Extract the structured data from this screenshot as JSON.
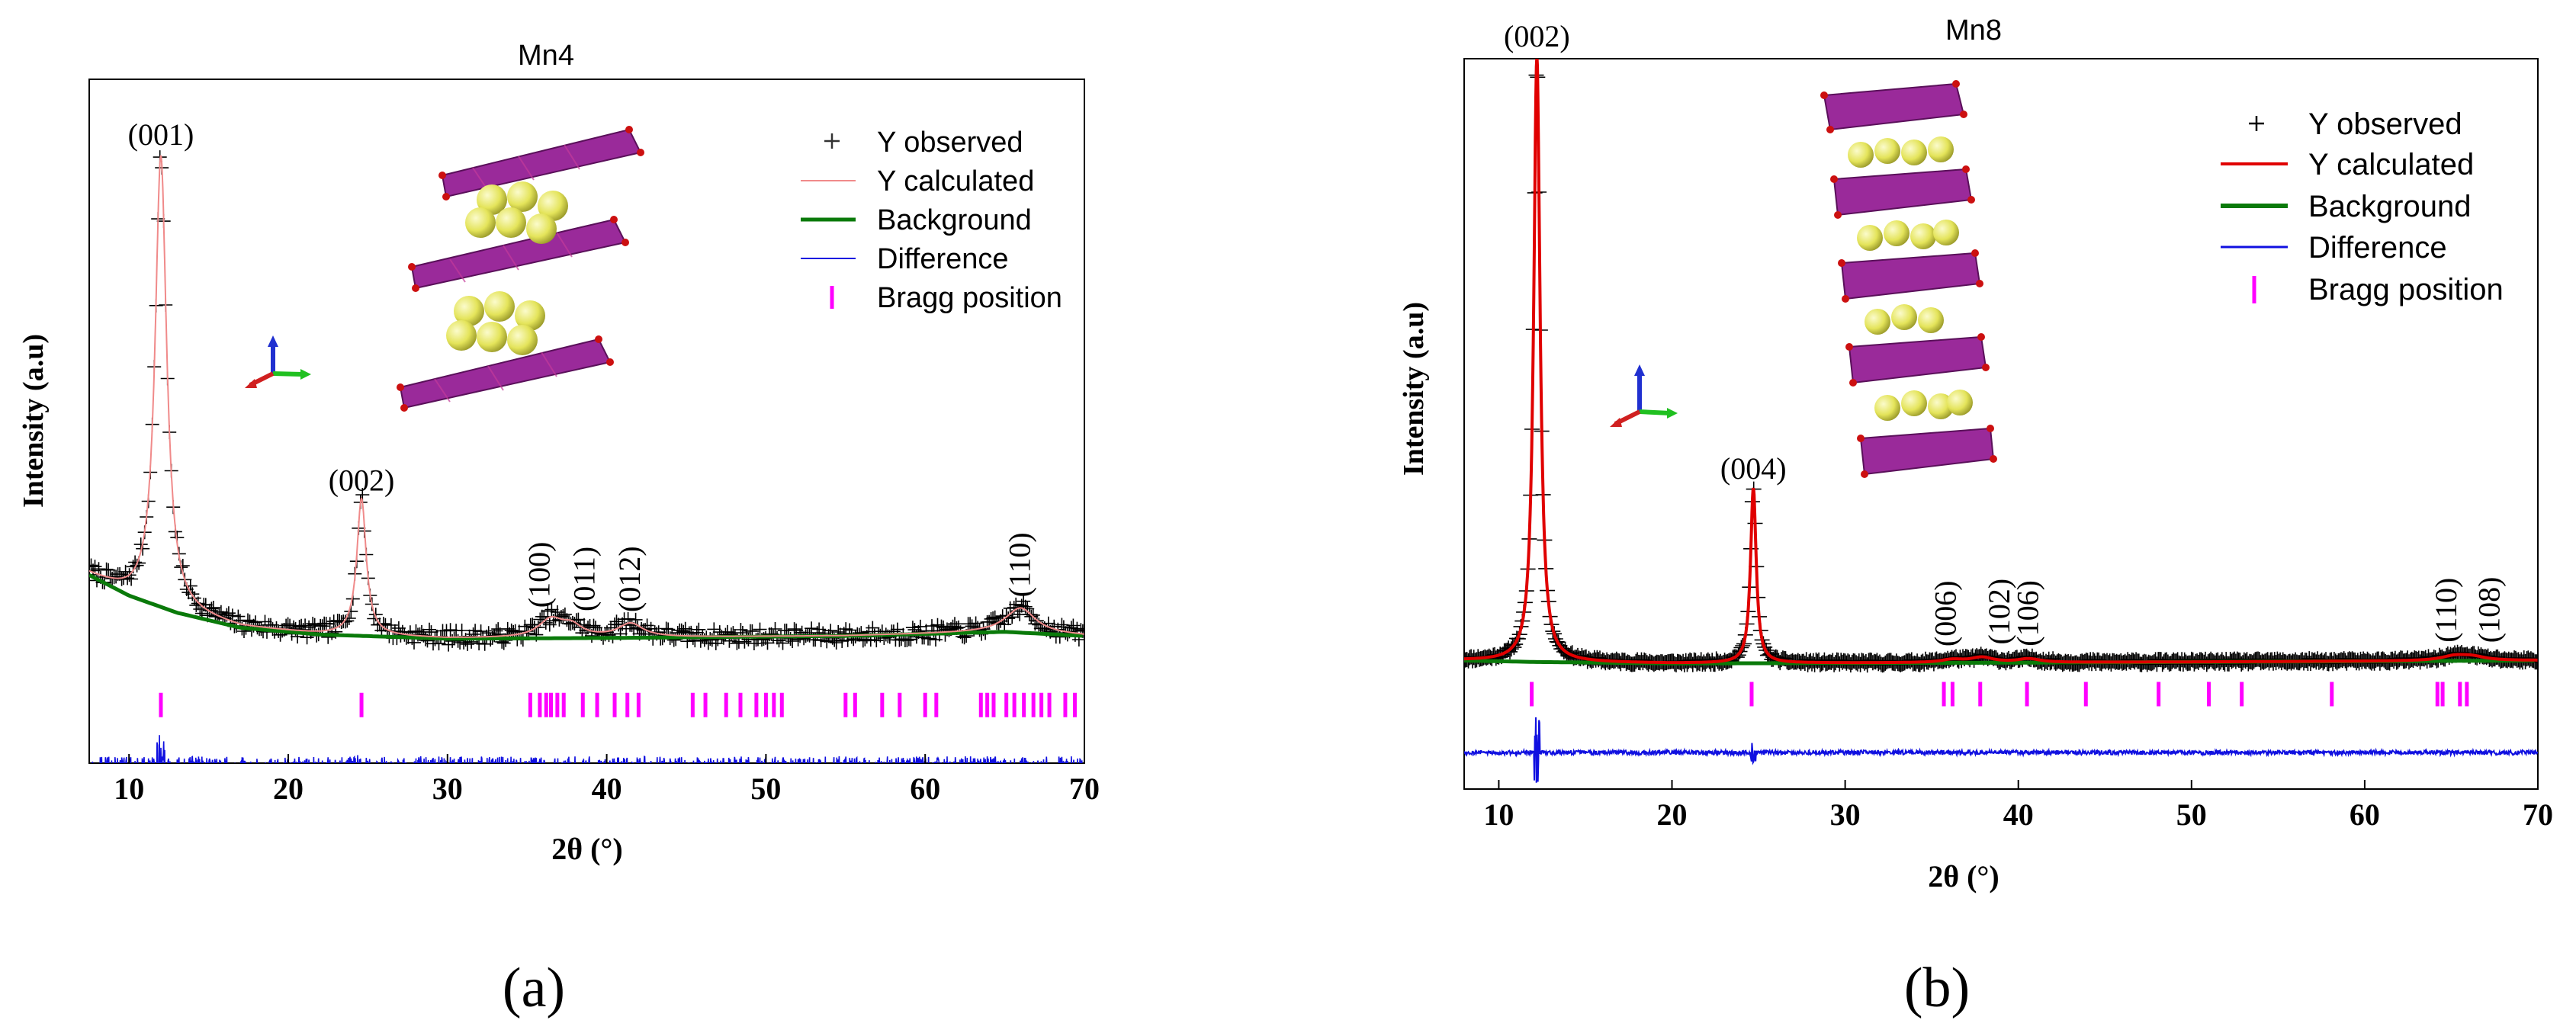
{
  "colors": {
    "observed": "#000000",
    "calculated_a": "#f08a8a",
    "calculated_b": "#e00000",
    "background": "#0a7a0a",
    "difference": "#1010e0",
    "bragg": "#ff00ff",
    "crystal_octa": "#9a2a9a",
    "crystal_ion": "#e4e45a"
  },
  "chart_data": [
    {
      "type": "line",
      "panel_label": "(a)",
      "title": "Mn4",
      "xlabel": "2θ (°)",
      "ylabel": "Intensity (a.u)",
      "xlim": [
        7.5,
        70
      ],
      "ylim": [
        0,
        100
      ],
      "xticks": [
        "10",
        "20",
        "30",
        "40",
        "50",
        "60",
        "70"
      ],
      "xtick_values": [
        10,
        20,
        30,
        40,
        50,
        60,
        70
      ],
      "legend_position": "top-right",
      "legend": [
        "Y observed",
        "Y calculated",
        "Background",
        "Difference",
        "Bragg position"
      ],
      "baseline": 13,
      "background_points": {
        "x": [
          7.5,
          10,
          13,
          17,
          22,
          30,
          40,
          55,
          65,
          70
        ],
        "y": [
          27.5,
          24.5,
          22,
          19.8,
          18.8,
          18.2,
          18.3,
          18.6,
          19.2,
          18.6
        ]
      },
      "peaks": [
        {
          "pos": 12.0,
          "height": 66,
          "width": 0.55,
          "label": "(001)"
        },
        {
          "pos": 24.6,
          "height": 20,
          "width": 0.45,
          "label": "(002)"
        },
        {
          "pos": 36.5,
          "height": 2.6,
          "width": 1.2,
          "label": "(100)"
        },
        {
          "pos": 37.8,
          "height": 1.5,
          "width": 1.0,
          "label": "(011)"
        },
        {
          "pos": 41.5,
          "height": 2.0,
          "width": 1.2,
          "label": "(012)"
        },
        {
          "pos": 66.0,
          "height": 3.6,
          "width": 1.4,
          "label": "(110)"
        }
      ],
      "bragg_positions": [
        12.0,
        24.6,
        35.2,
        35.8,
        36.2,
        36.5,
        36.9,
        37.3,
        38.5,
        39.4,
        40.5,
        41.3,
        42.0,
        45.4,
        46.2,
        47.5,
        48.4,
        49.4,
        50.0,
        50.5,
        51.0,
        55.0,
        55.6,
        57.3,
        58.4,
        60.0,
        60.7,
        63.5,
        63.9,
        64.3,
        65.1,
        65.6,
        66.2,
        66.8,
        67.3,
        67.8,
        68.8,
        69.4
      ],
      "bragg_level": 8.5,
      "difference_level": -1
    },
    {
      "type": "line",
      "panel_label": "(b)",
      "title": "Mn8",
      "xlabel": "2θ (°)",
      "ylabel": "Intensity (a.u)",
      "xlim": [
        8,
        70
      ],
      "ylim": [
        0,
        100
      ],
      "xticks": [
        "10",
        "20",
        "30",
        "40",
        "50",
        "60",
        "70"
      ],
      "xtick_values": [
        10,
        20,
        30,
        40,
        50,
        60,
        70
      ],
      "legend_position": "top-right",
      "legend": [
        "Y observed",
        "Y calculated",
        "Background",
        "Difference",
        "Bragg position"
      ],
      "baseline": 17.5,
      "background_points": {
        "x": [
          8,
          12,
          20,
          40,
          60,
          70
        ],
        "y": [
          17.6,
          17.4,
          17.2,
          17.3,
          17.5,
          17.6
        ]
      },
      "peaks": [
        {
          "pos": 12.2,
          "height": 83,
          "width": 0.28,
          "label": "(002)"
        },
        {
          "pos": 24.7,
          "height": 24,
          "width": 0.25,
          "label": "(004)"
        },
        {
          "pos": 36.2,
          "height": 0.4,
          "width": 1.0,
          "label": "(006)"
        },
        {
          "pos": 37.9,
          "height": 0.7,
          "width": 1.0,
          "label": "(102)"
        },
        {
          "pos": 40.6,
          "height": 0.5,
          "width": 1.0,
          "label": "(106)"
        },
        {
          "pos": 65.2,
          "height": 0.6,
          "width": 1.2,
          "label": "(110)"
        },
        {
          "pos": 66.2,
          "height": 0.5,
          "width": 1.2,
          "label": "(108)"
        }
      ],
      "bragg_positions": [
        11.9,
        24.6,
        35.7,
        36.2,
        37.8,
        40.5,
        43.9,
        48.1,
        51.0,
        52.9,
        58.1,
        64.2,
        64.5,
        65.5,
        65.9
      ],
      "bragg_level": 13,
      "difference_level": 5
    }
  ]
}
